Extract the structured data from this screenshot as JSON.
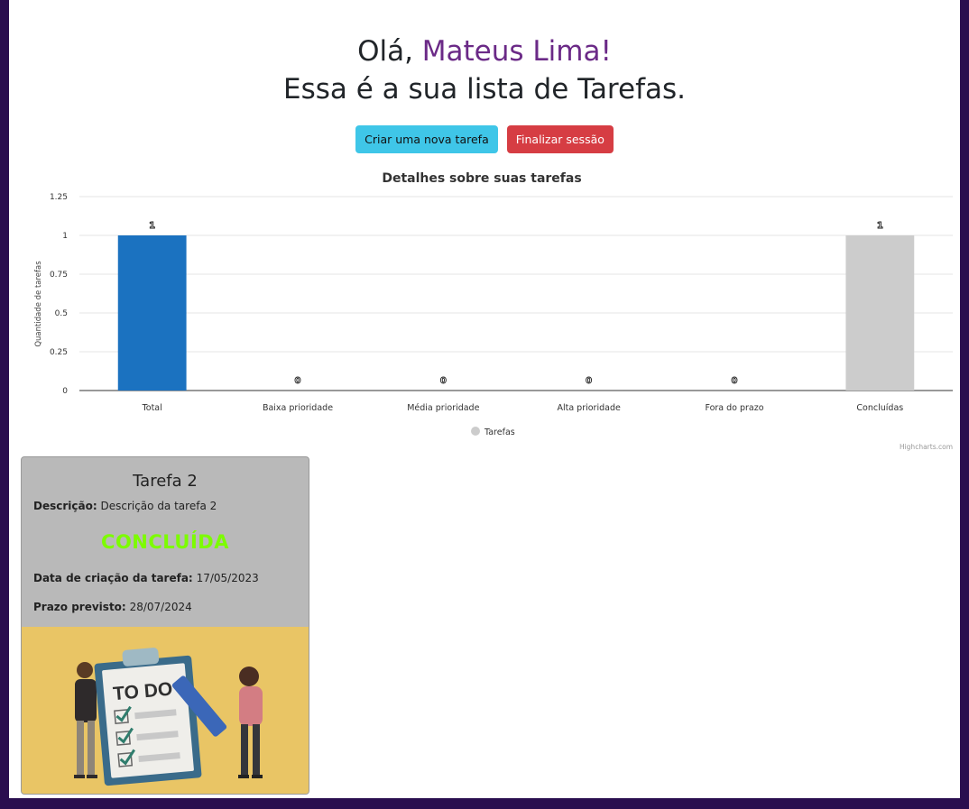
{
  "greeting": {
    "hello": "Olá, ",
    "name": "Mateus Lima!",
    "subtitle": "Essa é a sua lista de Tarefas."
  },
  "buttons": {
    "new_task": "Criar uma nova tarefa",
    "logout": "Finalizar sessão"
  },
  "chart_data": {
    "type": "bar",
    "title": "Detalhes sobre suas tarefas",
    "ylabel": "Quantidade de tarefas",
    "xlabel": "",
    "categories": [
      "Total",
      "Baixa prioridade",
      "Média prioridade",
      "Alta prioridade",
      "Fora do prazo",
      "Concluídas"
    ],
    "series": [
      {
        "name": "Tarefas",
        "values": [
          1,
          0,
          0,
          0,
          0,
          1
        ],
        "colors": [
          "#1b72c0",
          "#cccccc",
          "#cccccc",
          "#cccccc",
          "#cccccc",
          "#cccccc"
        ]
      }
    ],
    "ylim": [
      0,
      1.25
    ],
    "yticks": [
      "0",
      "0.25",
      "0.5",
      "0.75",
      "1",
      "1.25"
    ],
    "grid": true,
    "legend": "bottom-center",
    "legend_color": "#cccccc",
    "credits": "Highcharts.com"
  },
  "card": {
    "title": "Tarefa 2",
    "description_label": "Descrição:",
    "description": "Descrição da tarefa 2",
    "status": "CONCLUÍDA",
    "created_label": "Data de criação da tarefa:",
    "created": "17/05/2023",
    "deadline_label": "Prazo previsto:",
    "deadline": "28/07/2024",
    "image_text": "TO DO"
  },
  "colors": {
    "background": "#2a0e4f",
    "name_accent": "#6b2a87",
    "btn_new": "#3fc6e8",
    "btn_end": "#d63d43",
    "status": "#7CFC00"
  }
}
